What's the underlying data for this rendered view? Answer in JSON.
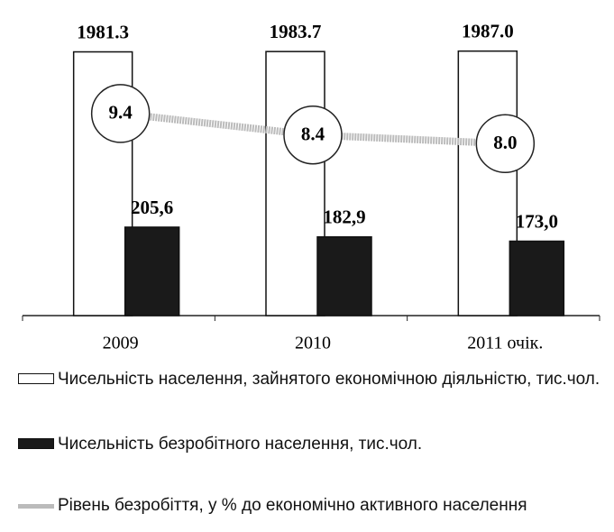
{
  "chart_data": {
    "type": "bar",
    "categories": [
      "2009",
      "2010",
      "2011 очік."
    ],
    "series": [
      {
        "name": "Чисельність населення, зайнятого економічною діяльністю, тис.чол.",
        "type": "bar",
        "color": "#ffffff",
        "values": [
          1981.3,
          1983.7,
          1987.0
        ],
        "value_labels": [
          "1981.3",
          "1983.7",
          "1987.0"
        ],
        "ylim": [
          0,
          2100
        ]
      },
      {
        "name": "Чисельність безробітного населення, тис.чол.",
        "type": "bar",
        "color": "#1a1a1a",
        "values": [
          205.6,
          182.9,
          173.0
        ],
        "value_labels": [
          "205,6",
          "182,9",
          "173,0"
        ],
        "ylim": [
          0,
          650
        ]
      },
      {
        "name": "Рівень безробіття, у % до економічно активного населення",
        "type": "line",
        "color": "#bbbbbb",
        "values": [
          9.4,
          8.4,
          8.0
        ],
        "value_labels": [
          "9.4",
          "8.4",
          "8.0"
        ],
        "ylim": [
          0,
          13
        ]
      }
    ]
  }
}
